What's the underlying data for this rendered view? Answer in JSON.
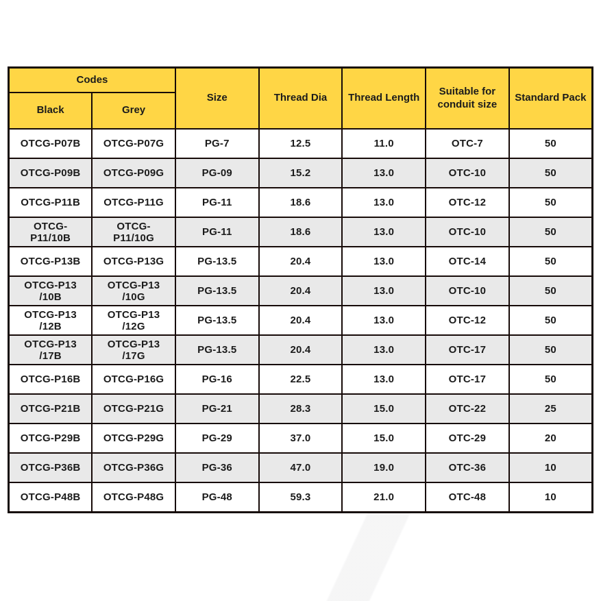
{
  "table": {
    "header": {
      "codes": "Codes",
      "black": "Black",
      "grey": "Grey",
      "size": "Size",
      "thread_dia": "Thread Dia",
      "thread_length": "Thread Length",
      "suitable_for_conduit_size": "Suitable for conduit size",
      "standard_pack": "Standard Pack"
    },
    "rows": [
      [
        "OTCG-P07B",
        "OTCG-P07G",
        "PG-7",
        "12.5",
        "11.0",
        "OTC-7",
        "50"
      ],
      [
        "OTCG-P09B",
        "OTCG-P09G",
        "PG-09",
        "15.2",
        "13.0",
        "OTC-10",
        "50"
      ],
      [
        "OTCG-P11B",
        "OTCG-P11G",
        "PG-11",
        "18.6",
        "13.0",
        "OTC-12",
        "50"
      ],
      [
        "OTCG-P11/10B",
        "OTCG-P11/10G",
        "PG-11",
        "18.6",
        "13.0",
        "OTC-10",
        "50"
      ],
      [
        "OTCG-P13B",
        "OTCG-P13G",
        "PG-13.5",
        "20.4",
        "13.0",
        "OTC-14",
        "50"
      ],
      [
        "OTCG-P13 /10B",
        "OTCG-P13 /10G",
        "PG-13.5",
        "20.4",
        "13.0",
        "OTC-10",
        "50"
      ],
      [
        "OTCG-P13 /12B",
        "OTCG-P13 /12G",
        "PG-13.5",
        "20.4",
        "13.0",
        "OTC-12",
        "50"
      ],
      [
        "OTCG-P13 /17B",
        "OTCG-P13 /17G",
        "PG-13.5",
        "20.4",
        "13.0",
        "OTC-17",
        "50"
      ],
      [
        "OTCG-P16B",
        "OTCG-P16G",
        "PG-16",
        "22.5",
        "13.0",
        "OTC-17",
        "50"
      ],
      [
        "OTCG-P21B",
        "OTCG-P21G",
        "PG-21",
        "28.3",
        "15.0",
        "OTC-22",
        "25"
      ],
      [
        "OTCG-P29B",
        "OTCG-P29G",
        "PG-29",
        "37.0",
        "15.0",
        "OTC-29",
        "20"
      ],
      [
        "OTCG-P36B",
        "OTCG-P36G",
        "PG-36",
        "47.0",
        "19.0",
        "OTC-36",
        "10"
      ],
      [
        "OTCG-P48B",
        "OTCG-P48G",
        "PG-48",
        "59.3",
        "21.0",
        "OTC-48",
        "10"
      ]
    ]
  },
  "chart_data": {
    "type": "table",
    "columns": [
      "Codes / Black",
      "Codes / Grey",
      "Size",
      "Thread Dia",
      "Thread Length",
      "Suitable for conduit size",
      "Standard Pack"
    ],
    "rows": [
      [
        "OTCG-P07B",
        "OTCG-P07G",
        "PG-7",
        12.5,
        11.0,
        "OTC-7",
        50
      ],
      [
        "OTCG-P09B",
        "OTCG-P09G",
        "PG-09",
        15.2,
        13.0,
        "OTC-10",
        50
      ],
      [
        "OTCG-P11B",
        "OTCG-P11G",
        "PG-11",
        18.6,
        13.0,
        "OTC-12",
        50
      ],
      [
        "OTCG-P11/10B",
        "OTCG-P11/10G",
        "PG-11",
        18.6,
        13.0,
        "OTC-10",
        50
      ],
      [
        "OTCG-P13B",
        "OTCG-P13G",
        "PG-13.5",
        20.4,
        13.0,
        "OTC-14",
        50
      ],
      [
        "OTCG-P13 /10B",
        "OTCG-P13 /10G",
        "PG-13.5",
        20.4,
        13.0,
        "OTC-10",
        50
      ],
      [
        "OTCG-P13 /12B",
        "OTCG-P13 /12G",
        "PG-13.5",
        20.4,
        13.0,
        "OTC-12",
        50
      ],
      [
        "OTCG-P13 /17B",
        "OTCG-P13 /17G",
        "PG-13.5",
        20.4,
        13.0,
        "OTC-17",
        50
      ],
      [
        "OTCG-P16B",
        "OTCG-P16G",
        "PG-16",
        22.5,
        13.0,
        "OTC-17",
        50
      ],
      [
        "OTCG-P21B",
        "OTCG-P21G",
        "PG-21",
        28.3,
        15.0,
        "OTC-22",
        25
      ],
      [
        "OTCG-P29B",
        "OTCG-P29G",
        "PG-29",
        37.0,
        15.0,
        "OTC-29",
        20
      ],
      [
        "OTCG-P36B",
        "OTCG-P36G",
        "PG-36",
        47.0,
        19.0,
        "OTC-36",
        10
      ],
      [
        "OTCG-P48B",
        "OTCG-P48G",
        "PG-48",
        59.3,
        21.0,
        "OTC-48",
        10
      ]
    ]
  },
  "colors": {
    "header_bg": "#FFD645",
    "row_alt_bg": "#E9E9E9",
    "row_bg": "#FFFFFF",
    "border": "#160A08",
    "text": "#1B1B1B"
  }
}
